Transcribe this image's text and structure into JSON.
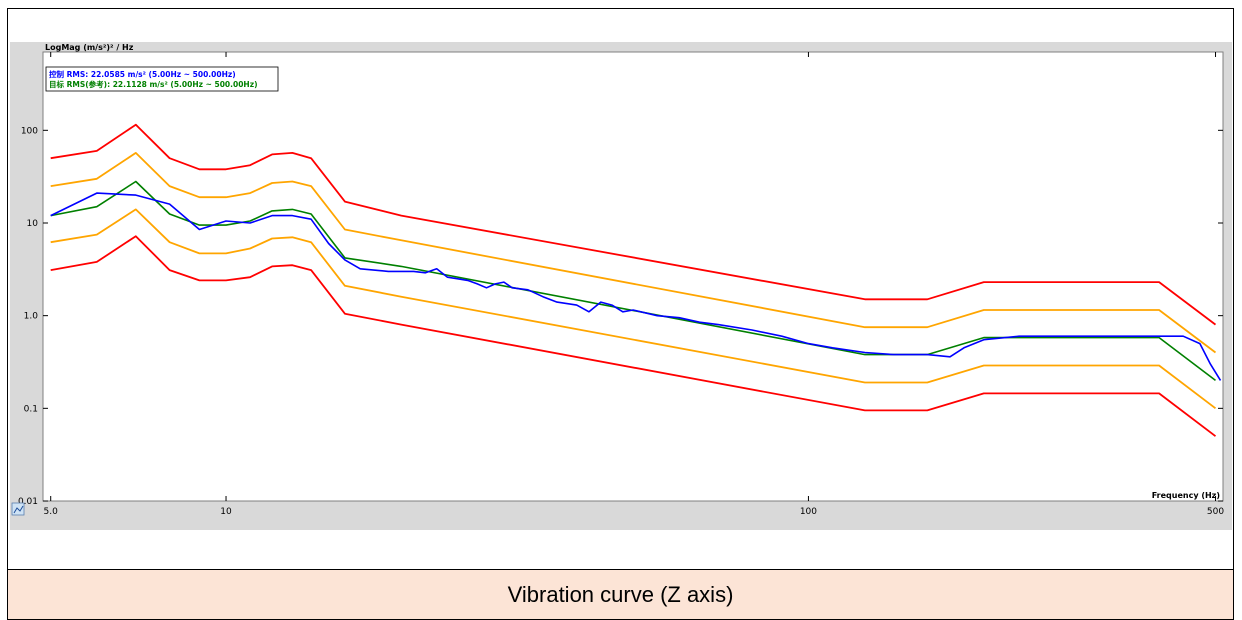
{
  "caption": "Vibration curve (Z axis)",
  "chart_data": {
    "type": "line",
    "ylabel": "LogMag (m/s²)² / Hz",
    "xlabel": "Frequency (Hz)",
    "x_scale": "log",
    "y_scale": "log",
    "xlim": [
      4.85,
      515
    ],
    "ylim": [
      0.01,
      700
    ],
    "x_ticks": [
      {
        "v": 5,
        "label": "5.0"
      },
      {
        "v": 10,
        "label": "10"
      },
      {
        "v": 100,
        "label": "100"
      },
      {
        "v": 500,
        "label": "500"
      }
    ],
    "y_ticks": [
      {
        "v": 100,
        "label": "100"
      },
      {
        "v": 10,
        "label": "10"
      },
      {
        "v": 1,
        "label": "1.0"
      },
      {
        "v": 0.1,
        "label": "0.1"
      },
      {
        "v": 0.01,
        "label": "0.01"
      }
    ],
    "grid": false,
    "legend_position": "top-left",
    "legend": [
      {
        "text": "控制 RMS: 22.0585 m/s² (5.00Hz ~ 500.00Hz)",
        "color": "#0000ff"
      },
      {
        "text": "目标 RMS(参考): 22.1128 m/s² (5.00Hz ~ 500.00Hz)",
        "color": "#008000"
      }
    ],
    "series": [
      {
        "color": "#ff0000",
        "points": [
          [
            5,
            50
          ],
          [
            6,
            60
          ],
          [
            7,
            115
          ],
          [
            8,
            50
          ],
          [
            9,
            38
          ],
          [
            10,
            38
          ],
          [
            11,
            42
          ],
          [
            12,
            55
          ],
          [
            13,
            57
          ],
          [
            14,
            50
          ],
          [
            16,
            17
          ],
          [
            20,
            12
          ],
          [
            125,
            1.5
          ],
          [
            160,
            1.5
          ],
          [
            200,
            2.3
          ],
          [
            400,
            2.3
          ],
          [
            500,
            0.8
          ]
        ]
      },
      {
        "color": "#ffa500",
        "points": [
          [
            5,
            25
          ],
          [
            6,
            30
          ],
          [
            7,
            57
          ],
          [
            8,
            25
          ],
          [
            9,
            19
          ],
          [
            10,
            19
          ],
          [
            11,
            21
          ],
          [
            12,
            27
          ],
          [
            13,
            28
          ],
          [
            14,
            25
          ],
          [
            16,
            8.5
          ],
          [
            20,
            6.5
          ],
          [
            125,
            0.75
          ],
          [
            160,
            0.75
          ],
          [
            200,
            1.15
          ],
          [
            400,
            1.15
          ],
          [
            500,
            0.4
          ]
        ]
      },
      {
        "color": "#ffa500",
        "points": [
          [
            5,
            6.2
          ],
          [
            6,
            7.5
          ],
          [
            7,
            14
          ],
          [
            8,
            6.2
          ],
          [
            9,
            4.7
          ],
          [
            10,
            4.7
          ],
          [
            11,
            5.3
          ],
          [
            12,
            6.8
          ],
          [
            13,
            7
          ],
          [
            14,
            6.2
          ],
          [
            16,
            2.1
          ],
          [
            20,
            1.6
          ],
          [
            125,
            0.19
          ],
          [
            160,
            0.19
          ],
          [
            200,
            0.29
          ],
          [
            400,
            0.29
          ],
          [
            500,
            0.1
          ]
        ]
      },
      {
        "color": "#ff0000",
        "points": [
          [
            5,
            3.1
          ],
          [
            6,
            3.8
          ],
          [
            7,
            7.2
          ],
          [
            8,
            3.1
          ],
          [
            9,
            2.4
          ],
          [
            10,
            2.4
          ],
          [
            11,
            2.6
          ],
          [
            12,
            3.4
          ],
          [
            13,
            3.5
          ],
          [
            14,
            3.1
          ],
          [
            16,
            1.05
          ],
          [
            20,
            0.8
          ],
          [
            125,
            0.095
          ],
          [
            160,
            0.095
          ],
          [
            200,
            0.145
          ],
          [
            400,
            0.145
          ],
          [
            500,
            0.05
          ]
        ]
      },
      {
        "name": "目标",
        "color": "#008000",
        "points": [
          [
            5,
            12
          ],
          [
            6,
            15
          ],
          [
            7,
            28
          ],
          [
            8,
            12.5
          ],
          [
            9,
            9.5
          ],
          [
            10,
            9.5
          ],
          [
            11,
            10.5
          ],
          [
            12,
            13.5
          ],
          [
            13,
            14
          ],
          [
            14,
            12.5
          ],
          [
            16,
            4.2
          ],
          [
            20,
            3.4
          ],
          [
            125,
            0.38
          ],
          [
            160,
            0.38
          ],
          [
            200,
            0.58
          ],
          [
            400,
            0.58
          ],
          [
            500,
            0.2
          ]
        ]
      },
      {
        "name": "控制",
        "color": "#0000ff",
        "points": [
          [
            5,
            12
          ],
          [
            6,
            21
          ],
          [
            7,
            20
          ],
          [
            8,
            16
          ],
          [
            9,
            8.5
          ],
          [
            10,
            10.5
          ],
          [
            11,
            10
          ],
          [
            12,
            12
          ],
          [
            13,
            12
          ],
          [
            14,
            11
          ],
          [
            15,
            6
          ],
          [
            16,
            4
          ],
          [
            17,
            3.2
          ],
          [
            19,
            3
          ],
          [
            21,
            3
          ],
          [
            22,
            2.9
          ],
          [
            23,
            3.2
          ],
          [
            24,
            2.6
          ],
          [
            25,
            2.5
          ],
          [
            26,
            2.4
          ],
          [
            27,
            2.2
          ],
          [
            28,
            2.0
          ],
          [
            29,
            2.2
          ],
          [
            30,
            2.3
          ],
          [
            31,
            2.0
          ],
          [
            33,
            1.9
          ],
          [
            35,
            1.6
          ],
          [
            37,
            1.4
          ],
          [
            40,
            1.3
          ],
          [
            42,
            1.1
          ],
          [
            44,
            1.4
          ],
          [
            46,
            1.3
          ],
          [
            48,
            1.1
          ],
          [
            50,
            1.15
          ],
          [
            55,
            1.0
          ],
          [
            60,
            0.95
          ],
          [
            65,
            0.85
          ],
          [
            70,
            0.8
          ],
          [
            80,
            0.7
          ],
          [
            90,
            0.6
          ],
          [
            100,
            0.5
          ],
          [
            110,
            0.45
          ],
          [
            125,
            0.4
          ],
          [
            140,
            0.38
          ],
          [
            160,
            0.38
          ],
          [
            175,
            0.36
          ],
          [
            185,
            0.45
          ],
          [
            200,
            0.55
          ],
          [
            230,
            0.6
          ],
          [
            300,
            0.6
          ],
          [
            400,
            0.6
          ],
          [
            440,
            0.6
          ],
          [
            470,
            0.5
          ],
          [
            490,
            0.3
          ],
          [
            510,
            0.2
          ]
        ]
      }
    ]
  },
  "icons": {
    "corner": "chart-icon"
  }
}
